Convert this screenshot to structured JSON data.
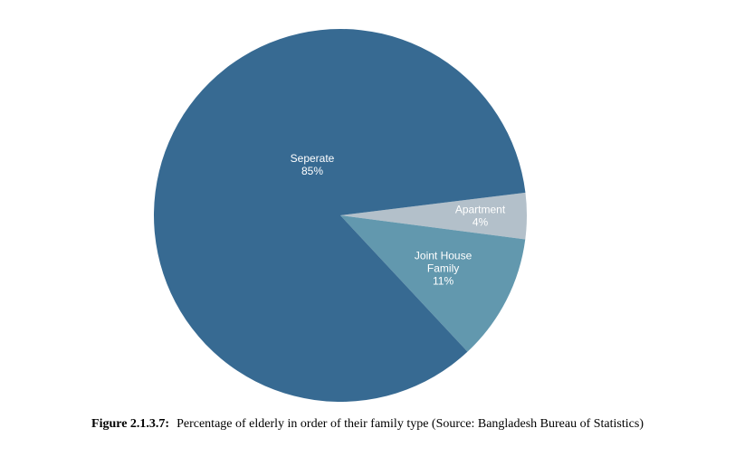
{
  "chart_data": {
    "type": "pie",
    "title": "",
    "slices": [
      {
        "label_lines": [
          "Seperate"
        ],
        "percent_label": "85%",
        "value": 85,
        "color": "#376a92"
      },
      {
        "label_lines": [
          "Apartment"
        ],
        "percent_label": "4%",
        "value": 4,
        "color": "#b3c0ca"
      },
      {
        "label_lines": [
          "Joint House",
          "Family"
        ],
        "percent_label": "11%",
        "value": 11,
        "color": "#6298ae"
      }
    ],
    "start_angle_deg": -7,
    "direction": "clockwise"
  },
  "caption": {
    "figure_number": "Figure 2.1.3.7:",
    "text": "Percentage of elderly in order of their family type (Source: Bangladesh Bureau of Statistics)"
  }
}
